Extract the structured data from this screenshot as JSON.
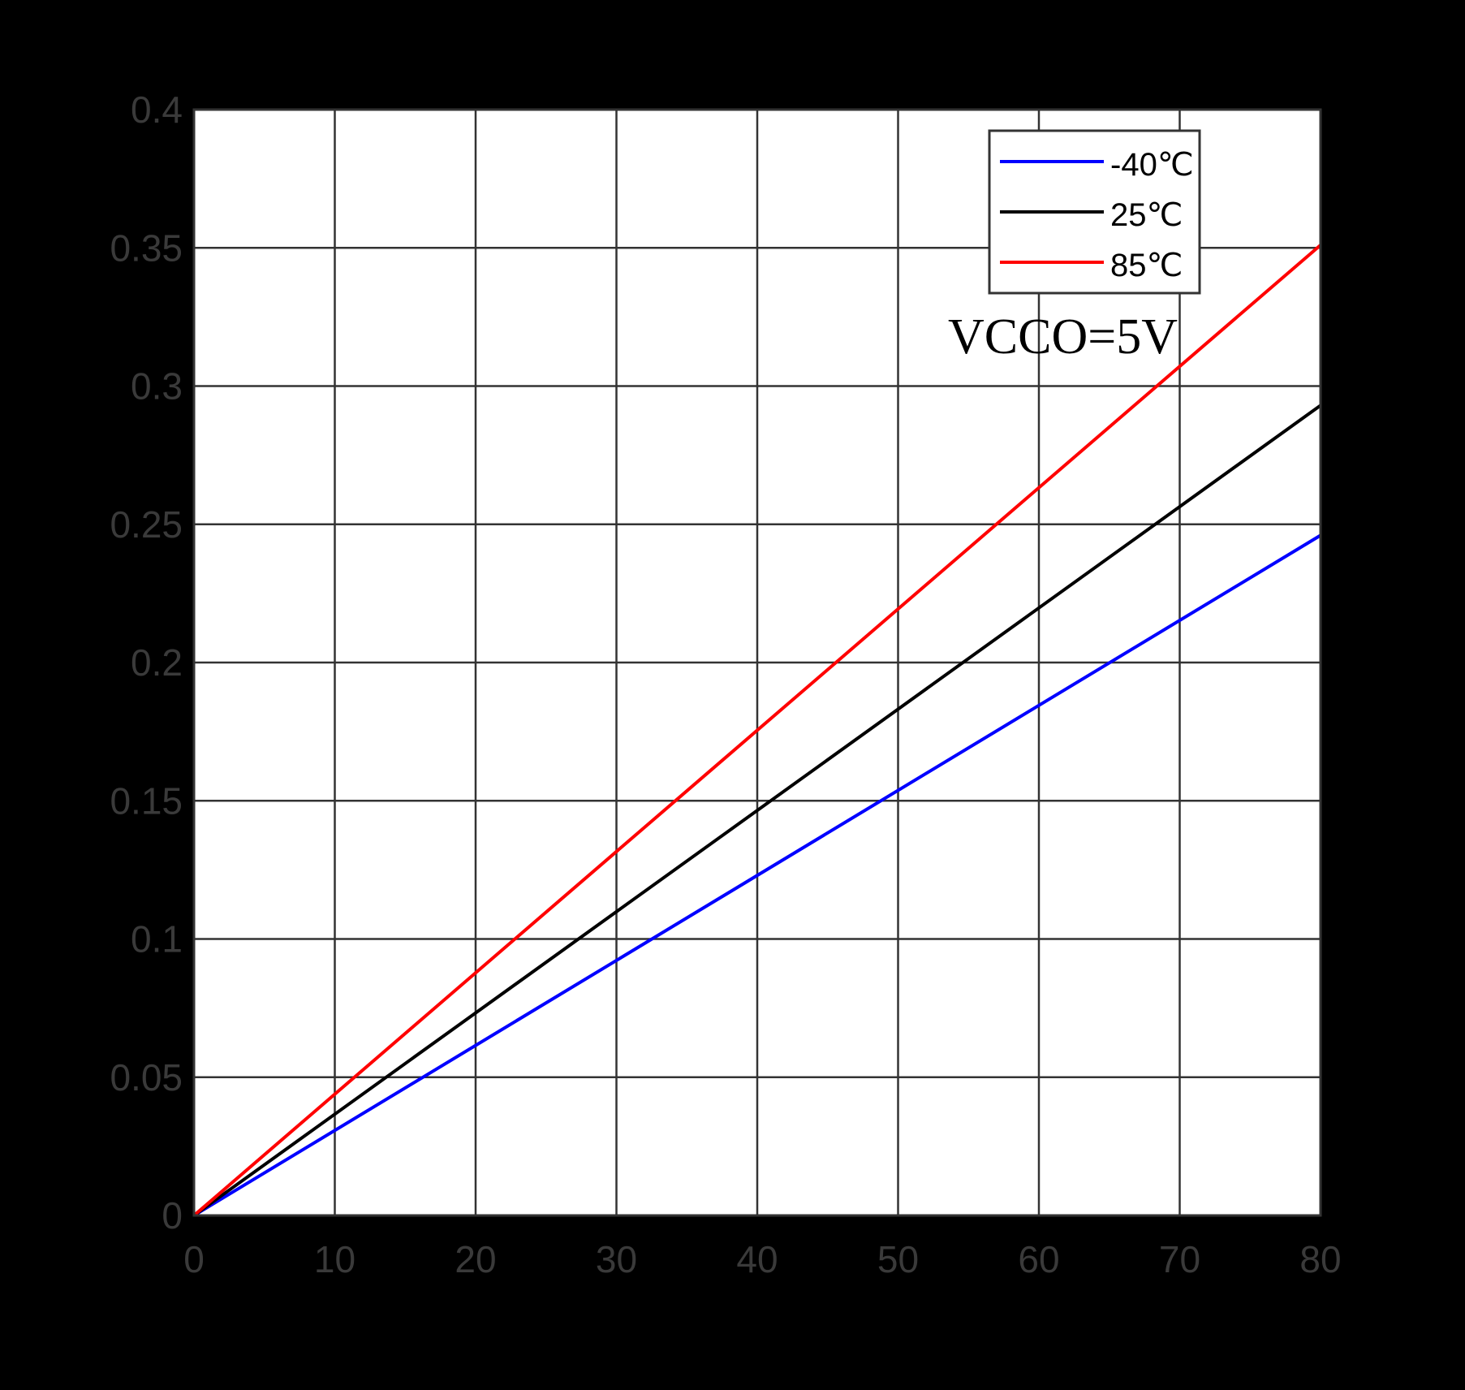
{
  "chart_data": {
    "type": "line",
    "title": "",
    "xlabel": "",
    "ylabel": "",
    "xlim": [
      0,
      80
    ],
    "ylim": [
      0,
      0.4
    ],
    "grid": true,
    "x_ticks": [
      "0",
      "10",
      "20",
      "30",
      "40",
      "50",
      "60",
      "70",
      "80"
    ],
    "y_ticks": [
      "0",
      "0.05",
      "0.1",
      "0.15",
      "0.2",
      "0.25",
      "0.3",
      "0.35",
      "0.4"
    ],
    "legend_position": "top-right",
    "annotation": "VCCO=5V",
    "series": [
      {
        "name": "-40℃",
        "color": "#0000ff",
        "x": [
          0,
          80
        ],
        "y": [
          0,
          0.246
        ]
      },
      {
        "name": "25℃",
        "color": "#000000",
        "x": [
          0,
          80
        ],
        "y": [
          0,
          0.293
        ]
      },
      {
        "name": "85℃",
        "color": "#ff0000",
        "x": [
          0,
          80
        ],
        "y": [
          0,
          0.351
        ]
      }
    ]
  }
}
